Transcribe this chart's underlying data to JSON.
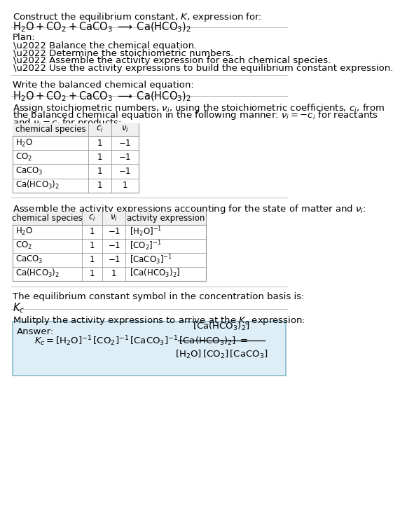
{
  "title_line1": "Construct the equilibrium constant, $K$, expression for:",
  "title_line2": "$\\mathrm{H_2O + CO_2 + CaCO_3 \\;\\longrightarrow\\; Ca(HCO_3)_2}$",
  "plan_header": "Plan:",
  "plan_items": [
    "\\u2022 Balance the chemical equation.",
    "\\u2022 Determine the stoichiometric numbers.",
    "\\u2022 Assemble the activity expression for each chemical species.",
    "\\u2022 Use the activity expressions to build the equilibrium constant expression."
  ],
  "section1_header": "Write the balanced chemical equation:",
  "section1_eq": "$\\mathrm{H_2O + CO_2 + CaCO_3 \\;\\longrightarrow\\; Ca(HCO_3)_2}$",
  "table1_headers": [
    "chemical species",
    "$c_i$",
    "$\\nu_i$"
  ],
  "table1_rows": [
    [
      "$\\mathrm{H_2O}$",
      "1",
      "$-1$"
    ],
    [
      "$\\mathrm{CO_2}$",
      "1",
      "$-1$"
    ],
    [
      "$\\mathrm{CaCO_3}$",
      "1",
      "$-1$"
    ],
    [
      "$\\mathrm{Ca(HCO_3)_2}$",
      "1",
      "1"
    ]
  ],
  "section3_header": "Assemble the activity expressions accounting for the state of matter and $\\nu_i$:",
  "table2_headers": [
    "chemical species",
    "$c_i$",
    "$\\nu_i$",
    "activity expression"
  ],
  "table2_rows": [
    [
      "$\\mathrm{H_2O}$",
      "1",
      "$-1$",
      "$[\\mathrm{H_2O}]^{-1}$"
    ],
    [
      "$\\mathrm{CO_2}$",
      "1",
      "$-1$",
      "$[\\mathrm{CO_2}]^{-1}$"
    ],
    [
      "$\\mathrm{CaCO_3}$",
      "1",
      "$-1$",
      "$[\\mathrm{CaCO_3}]^{-1}$"
    ],
    [
      "$\\mathrm{Ca(HCO_3)_2}$",
      "1",
      "1",
      "$[\\mathrm{Ca(HCO_3)_2}]$"
    ]
  ],
  "section4_header": "The equilibrium constant symbol in the concentration basis is:",
  "section4_symbol": "$K_c$",
  "section5_header": "Mulitply the activity expressions to arrive at the $K_c$ expression:",
  "answer_label": "Answer:",
  "bg_color": "#ffffff",
  "answer_bg": "#ddeef6",
  "answer_border": "#88bbcc",
  "separator_color": "#bbbbbb",
  "text_color": "#000000",
  "table_line_color": "#999999",
  "font_size": 9.5,
  "font_size_small": 8.5,
  "font_size_eq": 10.5
}
